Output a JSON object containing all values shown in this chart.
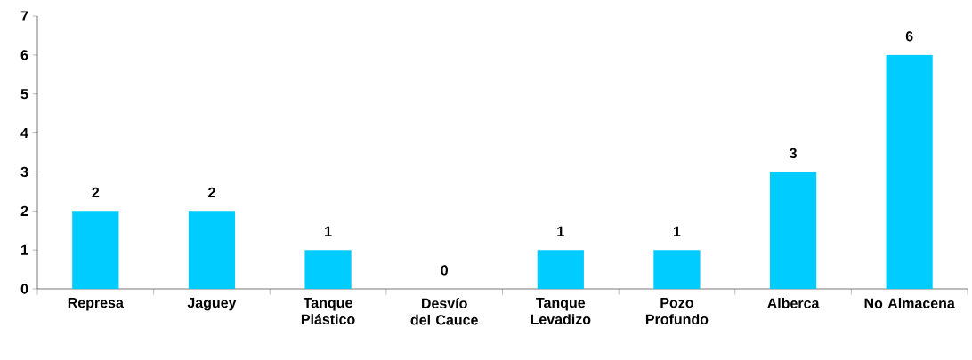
{
  "chart_data": {
    "type": "bar",
    "categories": [
      "Represa",
      "Jaguey",
      "Tanque Plástico",
      "Desvío del Cauce",
      "Tanque Levadizo",
      "Pozo Profundo",
      "Alberca",
      "No Almacena"
    ],
    "values": [
      2,
      2,
      1,
      0,
      1,
      1,
      3,
      6
    ],
    "color": "#00ccff",
    "ylim": [
      0,
      7
    ],
    "yticks": [
      0,
      1,
      2,
      3,
      4,
      5,
      6,
      7
    ],
    "grid": false,
    "data_labels": true
  }
}
